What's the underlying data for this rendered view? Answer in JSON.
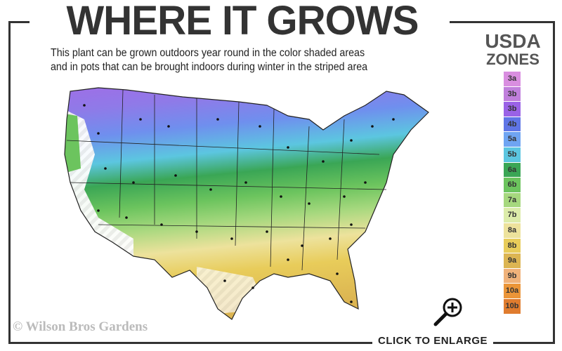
{
  "header": {
    "title": "WHERE IT GROWS",
    "subtitle_line1": "This plant can be grown outdoors year round in the color shaded areas",
    "subtitle_line2": "and in pots that can be brought indoors during winter in the striped area"
  },
  "legend": {
    "title_line1": "USDA",
    "title_line2": "ZONES",
    "zones": [
      {
        "label": "3a",
        "color": "#d98ee0"
      },
      {
        "label": "3b",
        "color": "#c07fdc"
      },
      {
        "label": "3b",
        "color": "#9a62e6"
      },
      {
        "label": "4b",
        "color": "#5f75e6"
      },
      {
        "label": "5a",
        "color": "#6fa4f2"
      },
      {
        "label": "5b",
        "color": "#5cc6e0"
      },
      {
        "label": "6a",
        "color": "#3aa655"
      },
      {
        "label": "6b",
        "color": "#6cc45e"
      },
      {
        "label": "7a",
        "color": "#a6d87e"
      },
      {
        "label": "7b",
        "color": "#dcecaa"
      },
      {
        "label": "8a",
        "color": "#ede29c"
      },
      {
        "label": "8b",
        "color": "#e8cc5a"
      },
      {
        "label": "9a",
        "color": "#dcb552"
      },
      {
        "label": "9b",
        "color": "#f0b27a"
      },
      {
        "label": "10a",
        "color": "#eb9538"
      },
      {
        "label": "10b",
        "color": "#e07c2e"
      }
    ]
  },
  "footer": {
    "copyright": "© Wilson Bros Gardens",
    "enlarge_label": "CLICK TO ENLARGE",
    "zoom_icon": "magnifier-plus-icon"
  }
}
